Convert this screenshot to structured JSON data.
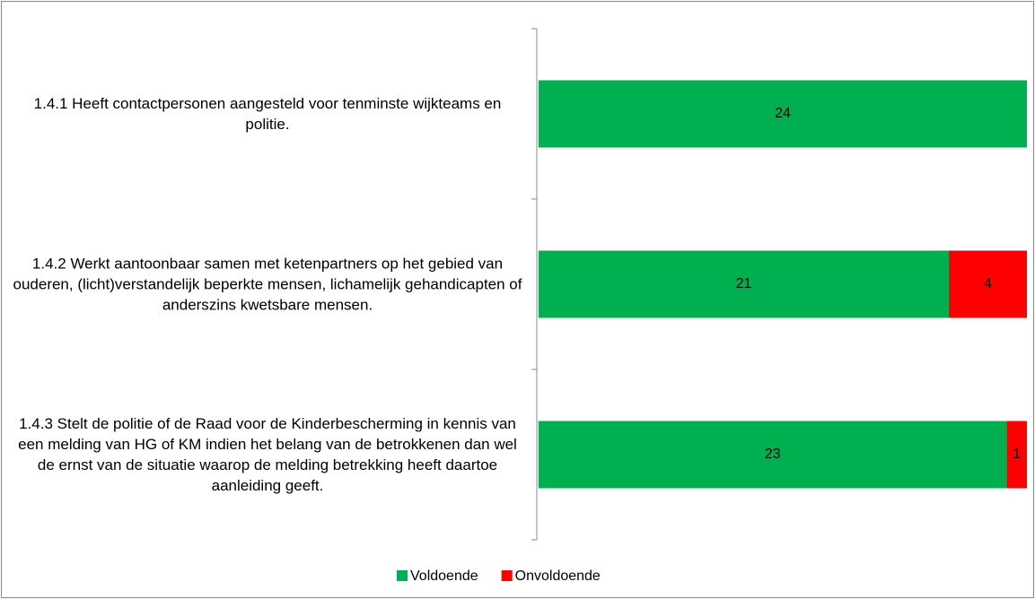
{
  "chart_data": {
    "type": "bar",
    "orientation": "horizontal",
    "stacked": "percent",
    "categories": [
      "1.4.1 Heeft contactpersonen  aangesteld voor tenminste wijkteams  en politie.",
      "1.4.2 Werkt aantoonbaar samen met ketenpartners op het gebied van ouderen, (licht)verstandelijk beperkte mensen, lichamelijk gehandicapten of anderszins kwetsbare mensen.",
      "1.4.3 Stelt de politie of de Raad voor de Kinderbescherming in kennis van een melding van HG of KM indien het belang van de betrokkenen dan wel de ernst van de situatie waarop de melding betrekking heeft daartoe aanleiding geeft."
    ],
    "series": [
      {
        "name": "Voldoende",
        "color": "#00b050",
        "values": [
          24,
          21,
          23
        ]
      },
      {
        "name": "Onvoldoende",
        "color": "#ff0000",
        "values": [
          0,
          4,
          1
        ]
      }
    ],
    "legend": "bottom"
  }
}
